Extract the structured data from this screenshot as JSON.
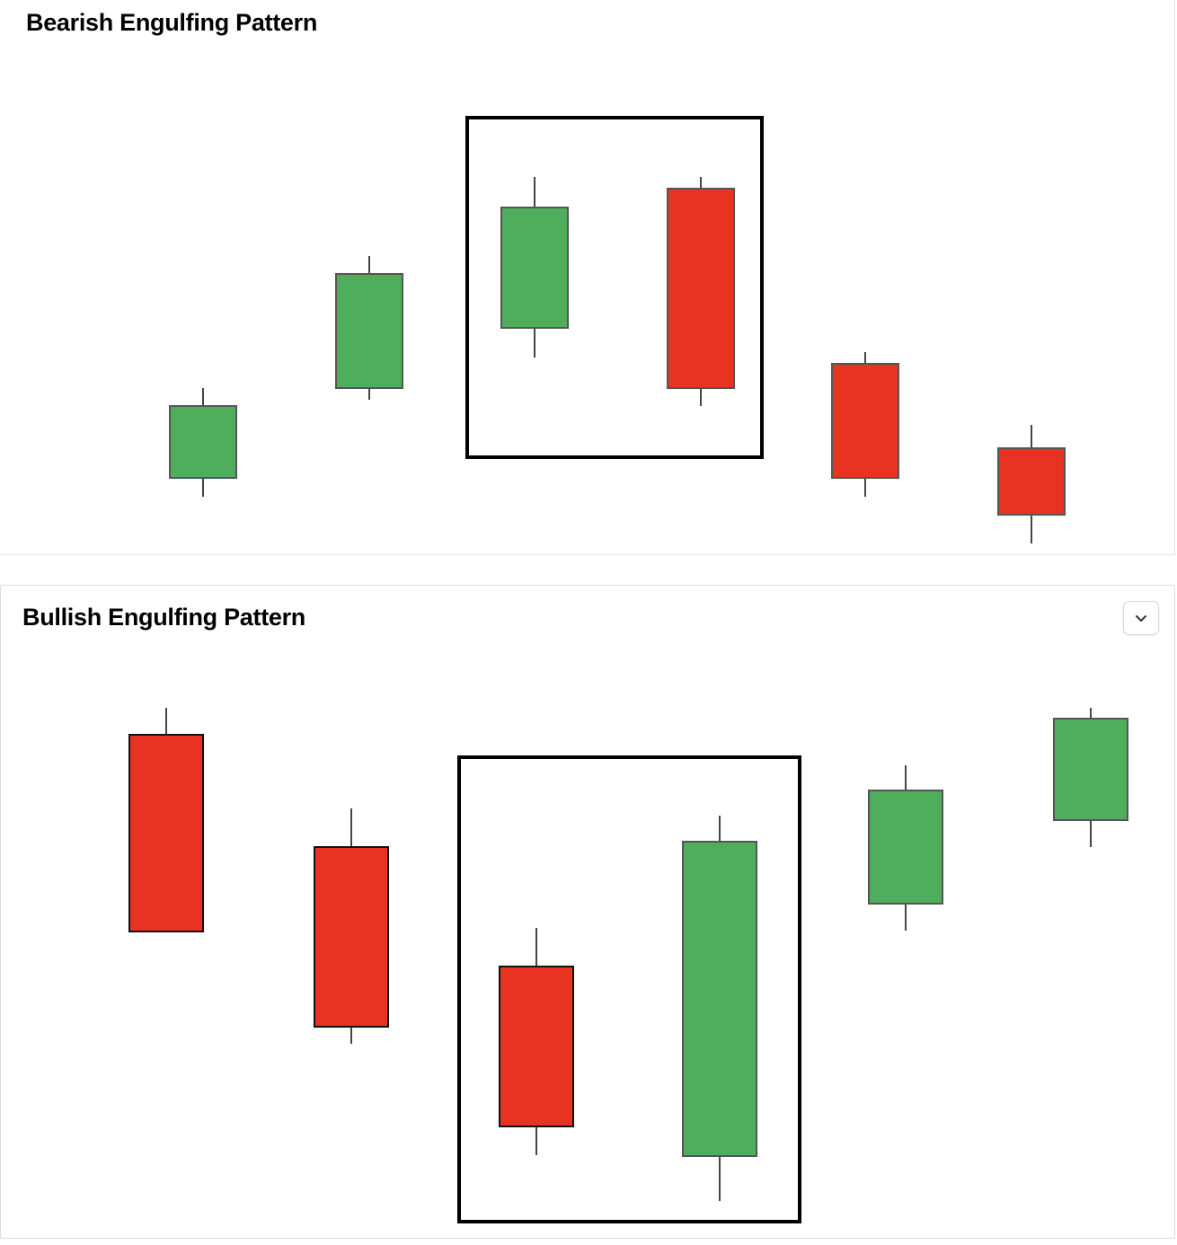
{
  "panels": [
    {
      "title": "Bearish Engulfing Pattern"
    },
    {
      "title": "Bullish Engulfing Pattern"
    }
  ]
}
